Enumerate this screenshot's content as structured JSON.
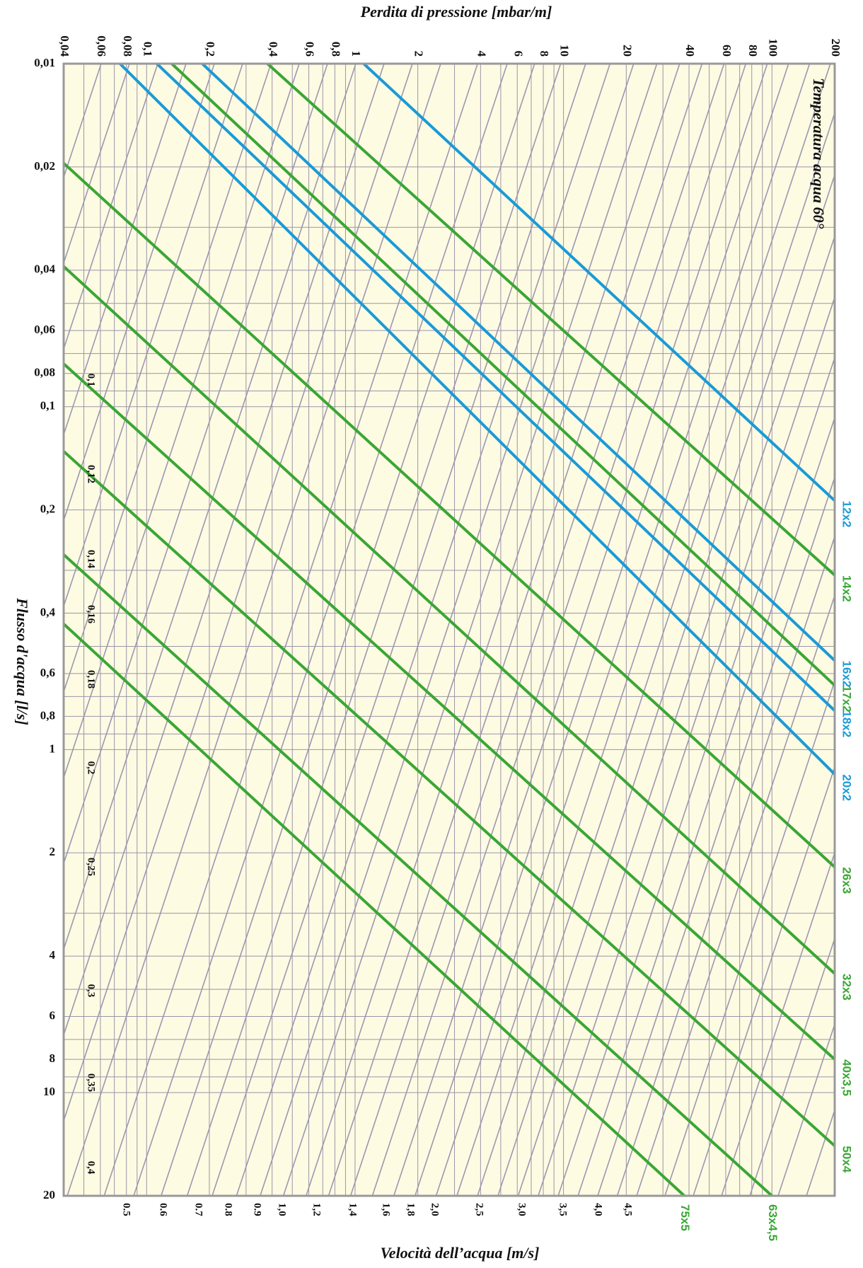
{
  "chart_data": {
    "type": "line",
    "title": "",
    "x_axis_top": {
      "label": "Perdita di pressione [mbar/m]",
      "scale": "log",
      "range": [
        0.04,
        200
      ],
      "ticks": [
        {
          "value": 0.04,
          "label": "0,04"
        },
        {
          "value": 0.06,
          "label": "0,06"
        },
        {
          "value": 0.08,
          "label": "0,08"
        },
        {
          "value": 0.1,
          "label": "0,1"
        },
        {
          "value": 0.2,
          "label": "0,2"
        },
        {
          "value": 0.4,
          "label": "0,4"
        },
        {
          "value": 0.6,
          "label": "0,6"
        },
        {
          "value": 0.8,
          "label": "0,8"
        },
        {
          "value": 1,
          "label": "1"
        },
        {
          "value": 2,
          "label": "2"
        },
        {
          "value": 4,
          "label": "4"
        },
        {
          "value": 6,
          "label": "6"
        },
        {
          "value": 8,
          "label": "8"
        },
        {
          "value": 10,
          "label": "10"
        },
        {
          "value": 20,
          "label": "20"
        },
        {
          "value": 40,
          "label": "40"
        },
        {
          "value": 60,
          "label": "60"
        },
        {
          "value": 80,
          "label": "80"
        },
        {
          "value": 100,
          "label": "100"
        },
        {
          "value": 200,
          "label": "200"
        }
      ]
    },
    "y_axis": {
      "label": "Flusso d'acqua [l/s]",
      "scale": "log",
      "range": [
        0.01,
        20
      ],
      "ticks": [
        {
          "value": 0.01,
          "label": "0,01"
        },
        {
          "value": 0.02,
          "label": "0,02"
        },
        {
          "value": 0.04,
          "label": "0,04"
        },
        {
          "value": 0.06,
          "label": "0,06"
        },
        {
          "value": 0.08,
          "label": "0,08"
        },
        {
          "value": 0.1,
          "label": "0,1"
        },
        {
          "value": 0.2,
          "label": "0,2"
        },
        {
          "value": 0.4,
          "label": "0,4"
        },
        {
          "value": 0.6,
          "label": "0,6"
        },
        {
          "value": 0.8,
          "label": "0,8"
        },
        {
          "value": 1,
          "label": "1"
        },
        {
          "value": 2,
          "label": "2"
        },
        {
          "value": 4,
          "label": "4"
        },
        {
          "value": 6,
          "label": "6"
        },
        {
          "value": 8,
          "label": "8"
        },
        {
          "value": 10,
          "label": "10"
        },
        {
          "value": 20,
          "label": "20"
        }
      ]
    },
    "velocity_axis": {
      "label": "Velocità dell’acqua [m/s]",
      "lines": [
        {
          "value": 0.1,
          "label": "0,1"
        },
        {
          "value": 0.12,
          "label": "0,12"
        },
        {
          "value": 0.14,
          "label": "0,14"
        },
        {
          "value": 0.16,
          "label": "0,16"
        },
        {
          "value": 0.18,
          "label": "0,18"
        },
        {
          "value": 0.2,
          "label": "0,2"
        },
        {
          "value": 0.25,
          "label": "0,25"
        },
        {
          "value": 0.3,
          "label": "0,3"
        },
        {
          "value": 0.35,
          "label": "0,35"
        },
        {
          "value": 0.4,
          "label": "0,4"
        },
        {
          "value": 0.5,
          "label": "0.5"
        },
        {
          "value": 0.6,
          "label": "0.6"
        },
        {
          "value": 0.7,
          "label": "0.7"
        },
        {
          "value": 0.8,
          "label": "0.8"
        },
        {
          "value": 0.9,
          "label": "0.9"
        },
        {
          "value": 1.0,
          "label": "1,0"
        },
        {
          "value": 1.2,
          "label": "1,2"
        },
        {
          "value": 1.4,
          "label": "1,4"
        },
        {
          "value": 1.6,
          "label": "1,6"
        },
        {
          "value": 1.8,
          "label": "1,8"
        },
        {
          "value": 2.0,
          "label": "2,0"
        },
        {
          "value": 2.5,
          "label": "2,5"
        },
        {
          "value": 3.0,
          "label": "3,0"
        },
        {
          "value": 3.5,
          "label": "3,5"
        },
        {
          "value": 4.0,
          "label": "4,0"
        },
        {
          "value": 4.5,
          "label": "4,5"
        }
      ]
    },
    "annotation": "Temperatura acqua 60°",
    "series": [
      {
        "name": "12x2",
        "color": "#1a9ad6",
        "points": [
          [
            1.1,
            0.01
          ],
          [
            200,
            0.188
          ]
        ]
      },
      {
        "name": "14x2",
        "color": "#3aa635",
        "points": [
          [
            0.38,
            0.01
          ],
          [
            200,
            0.31
          ]
        ]
      },
      {
        "name": "16x2",
        "color": "#1a9ad6",
        "points": [
          [
            0.185,
            0.01
          ],
          [
            200,
            0.55
          ]
        ]
      },
      {
        "name": "17x2",
        "color": "#3aa635",
        "points": [
          [
            0.132,
            0.01
          ],
          [
            200,
            0.65
          ]
        ]
      },
      {
        "name": "18x2",
        "color": "#1a9ad6",
        "points": [
          [
            0.112,
            0.01
          ],
          [
            200,
            0.77
          ]
        ]
      },
      {
        "name": "20x2",
        "color": "#1a9ad6",
        "points": [
          [
            0.0745,
            0.01
          ],
          [
            200,
            1.18
          ]
        ]
      },
      {
        "name": "26x3",
        "color": "#3aa635",
        "points": [
          [
            0.04,
            0.0195
          ],
          [
            200,
            2.2
          ]
        ]
      },
      {
        "name": "32x3",
        "color": "#3aa635",
        "points": [
          [
            0.04,
            0.039
          ],
          [
            200,
            4.5
          ]
        ]
      },
      {
        "name": "40x3,5",
        "color": "#3aa635",
        "points": [
          [
            0.04,
            0.075
          ],
          [
            200,
            8.0
          ]
        ]
      },
      {
        "name": "50x4",
        "color": "#3aa635",
        "points": [
          [
            0.04,
            0.135
          ],
          [
            200,
            14.3
          ]
        ]
      },
      {
        "name": "63x4,5",
        "color": "#3aa635",
        "points": [
          [
            0.04,
            0.27
          ],
          [
            100,
            20
          ]
        ]
      },
      {
        "name": "75x5",
        "color": "#3aa635",
        "points": [
          [
            0.04,
            0.43
          ],
          [
            38,
            20
          ]
        ]
      }
    ],
    "grid": true,
    "colors": {
      "background": "#fefbe3",
      "grid": "#9a95a8",
      "velocity": "#9c97b0",
      "blue": "#1a9ad6",
      "green": "#3aa635",
      "border": "#999999"
    }
  }
}
